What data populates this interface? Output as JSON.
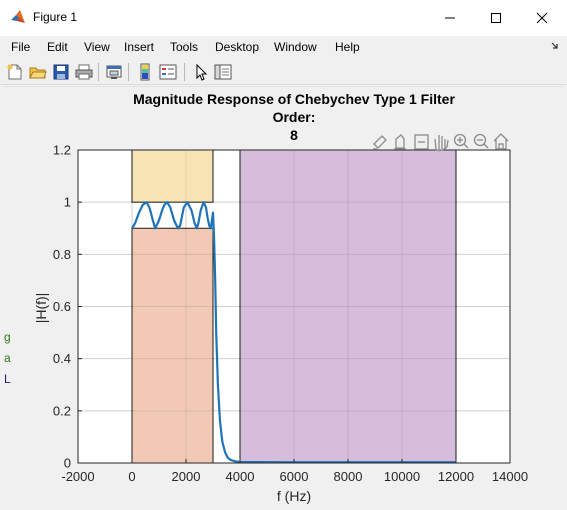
{
  "window": {
    "title": "Figure 1",
    "controls": {
      "minimize": "—",
      "maximize": "☐",
      "close": "✕"
    }
  },
  "menubar": [
    "File",
    "Edit",
    "View",
    "Insert",
    "Tools",
    "Desktop",
    "Window",
    "Help"
  ],
  "toolbar": {
    "icons": [
      "new-figure-icon",
      "open-icon",
      "save-icon",
      "print-icon",
      "link-plot-icon",
      "insert-colorbar-icon",
      "insert-legend-icon",
      "edit-plot-icon",
      "plot-browser-icon"
    ]
  },
  "axes_toolbar": {
    "icons": [
      "brush-icon",
      "data-cursor-icon",
      "restore-view-icon",
      "pan-icon",
      "zoom-in-icon",
      "zoom-out-icon",
      "home-icon"
    ]
  },
  "side_clip": [
    "g",
    "a",
    "L"
  ],
  "chart_data": {
    "type": "line",
    "title": "Magnitude Response of Chebychev Type 1 Filter",
    "title_order_label": "Order:",
    "title_order_value": "8",
    "xlabel": "f (Hz)",
    "ylabel": "|H(f)|",
    "xlim": [
      -2000,
      14000
    ],
    "ylim": [
      0,
      1.2
    ],
    "xticks": [
      -2000,
      0,
      2000,
      4000,
      6000,
      8000,
      10000,
      12000,
      14000
    ],
    "xtick_labels": [
      "-2000",
      "0",
      "2000",
      "4000",
      "6000",
      "8000",
      "10000",
      "12000",
      "14000"
    ],
    "yticks": [
      0,
      0.2,
      0.4,
      0.6,
      0.8,
      1,
      1.2
    ],
    "ytick_labels": [
      "0",
      "0.2",
      "0.4",
      "0.6",
      "0.8",
      "1",
      "1.2"
    ],
    "grid": true,
    "regions": [
      {
        "x": [
          0,
          3000
        ],
        "y": [
          1.0,
          1.2
        ],
        "color": "#f5dfa8"
      },
      {
        "x": [
          0,
          3000
        ],
        "y": [
          0,
          0.9
        ],
        "color": "#eebfa7"
      },
      {
        "x": [
          4000,
          12000
        ],
        "y": [
          0,
          1.2
        ],
        "color": "#cfb1d5"
      }
    ],
    "series": [
      {
        "color": "#1f73b7",
        "x": [
          0,
          120,
          260,
          400,
          540,
          640,
          700,
          760,
          860,
          1000,
          1120,
          1200,
          1300,
          1420,
          1560,
          1700,
          1780,
          1840,
          1920,
          2050,
          2200,
          2320,
          2400,
          2460,
          2550,
          2650,
          2740,
          2800,
          2860,
          2920,
          2960,
          3000,
          3040,
          3080,
          3120,
          3180,
          3260,
          3350,
          3450,
          3550,
          3650,
          3800,
          4000,
          6000,
          8000,
          10000,
          12000
        ],
        "y": [
          0.9,
          0.92,
          0.96,
          0.99,
          1.0,
          0.98,
          0.96,
          0.935,
          0.9,
          0.93,
          0.97,
          0.99,
          1.0,
          0.98,
          0.93,
          0.9,
          0.91,
          0.94,
          0.98,
          1.0,
          0.97,
          0.92,
          0.9,
          0.92,
          0.97,
          1.0,
          0.98,
          0.94,
          0.91,
          0.9,
          0.93,
          0.96,
          0.86,
          0.7,
          0.5,
          0.3,
          0.16,
          0.08,
          0.04,
          0.02,
          0.012,
          0.007,
          0.004,
          0.003,
          0.003,
          0.003,
          0.003
        ]
      }
    ]
  }
}
